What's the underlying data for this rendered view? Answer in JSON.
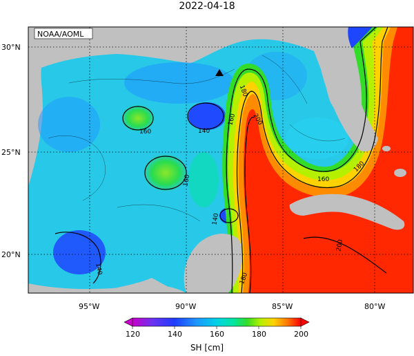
{
  "title": "2022-04-18",
  "credit": "NOAA/AOML",
  "lat_labels": [
    "30°N",
    "25°N",
    "20°N"
  ],
  "lon_labels": [
    "95°W",
    "90°W",
    "85°W",
    "80°W"
  ],
  "contour_labels": [
    "160",
    "140",
    "160",
    "160",
    "180",
    "200",
    "160",
    "180",
    "140",
    "140",
    "200",
    "180"
  ],
  "colorbar": {
    "title": "SH [cm]",
    "ticks": [
      "120",
      "140",
      "160",
      "180",
      "200"
    ],
    "colors": [
      "#c800c8",
      "#7a3cf2",
      "#1e3cff",
      "#1e8cff",
      "#00d2f0",
      "#00e6a0",
      "#28dc28",
      "#b4f000",
      "#ffd200",
      "#ff9600",
      "#ff3c00",
      "#ff0000"
    ]
  },
  "colors": {
    "land": "#c0c0c0",
    "ocean_base": "#28c8e8"
  },
  "marker": "triangle-station"
}
